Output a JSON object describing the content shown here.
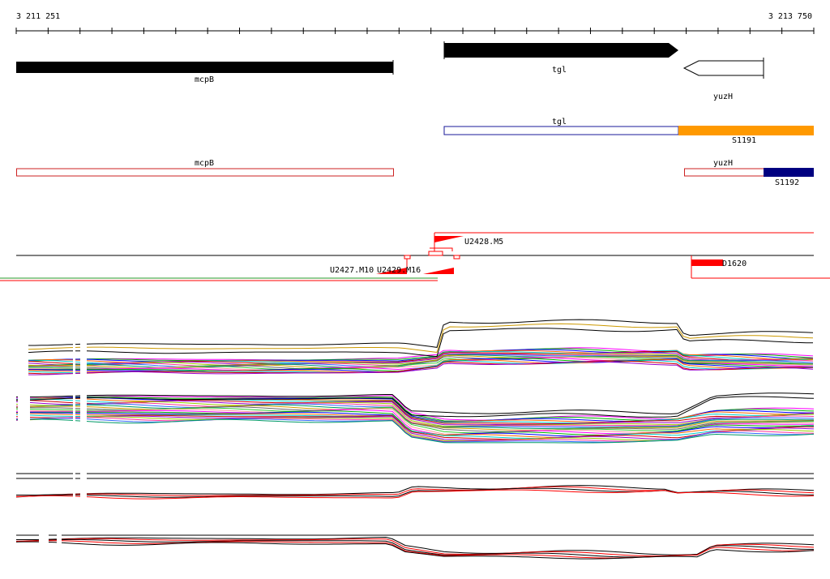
{
  "ruler": {
    "start_label": "3 211 251",
    "end_label": "3 213 750"
  },
  "genes": {
    "mcpB": "mcpB",
    "tgl": "tgl",
    "yuzH": "yuzH"
  },
  "transcripts": {
    "tgl": "tgl",
    "S1191": "S1191",
    "mcpB": "mcpB",
    "yuzH": "yuzH",
    "S1192": "S1192"
  },
  "features": {
    "U2428_M5": "U2428.M5",
    "U2427_M10": "U2427.M10",
    "U2429_M16": "U2429.M16",
    "D1620": "D1620"
  },
  "colors": {
    "gene_fill": "#000000",
    "transcript_outline_red": "#cc2222",
    "transcript_outline_blue": "#1a1a99",
    "s1191": "#ff9900",
    "s1192": "#000080",
    "marker_red": "#ff0000"
  }
}
